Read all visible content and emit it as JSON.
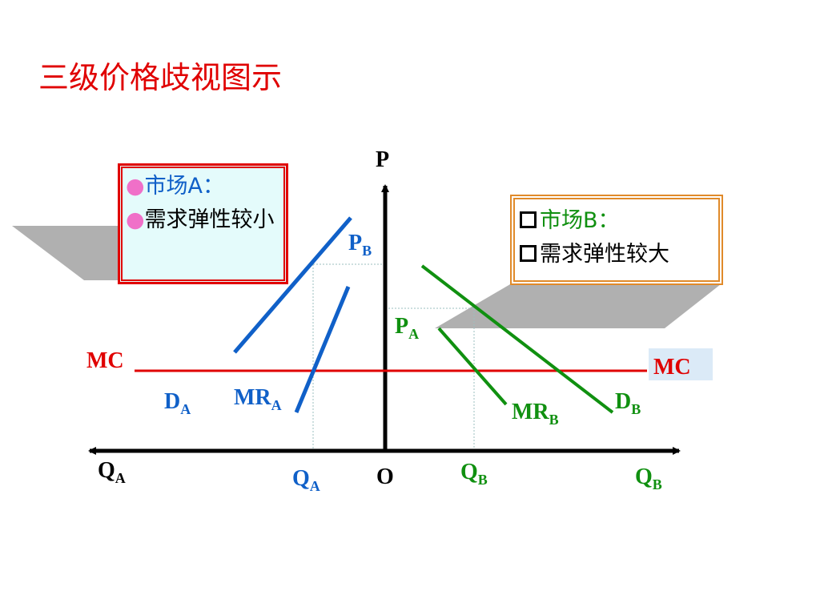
{
  "title": "三级价格歧视图示",
  "market_a": {
    "name": "市场A：",
    "note": "需求弹性较小"
  },
  "market_b": {
    "name": "市场B：",
    "note": "需求弹性较大"
  },
  "axes": {
    "p": "P",
    "o": "O",
    "q_left": {
      "main": "Q",
      "sub": "A"
    },
    "q_right": {
      "main": "Q",
      "sub": "B"
    }
  },
  "labels": {
    "mc_left": "MC",
    "mc_right": "MC",
    "p_b": {
      "main": "P",
      "sub": "B"
    },
    "p_a": {
      "main": "P",
      "sub": "A"
    },
    "d_a": {
      "main": "D",
      "sub": "A"
    },
    "mr_a": {
      "main": "MR",
      "sub": "A"
    },
    "d_b": {
      "main": "D",
      "sub": "B"
    },
    "mr_b": {
      "main": "MR",
      "sub": "B"
    },
    "q_a": {
      "main": "Q",
      "sub": "A"
    },
    "q_b": {
      "main": "Q",
      "sub": "B"
    }
  }
}
